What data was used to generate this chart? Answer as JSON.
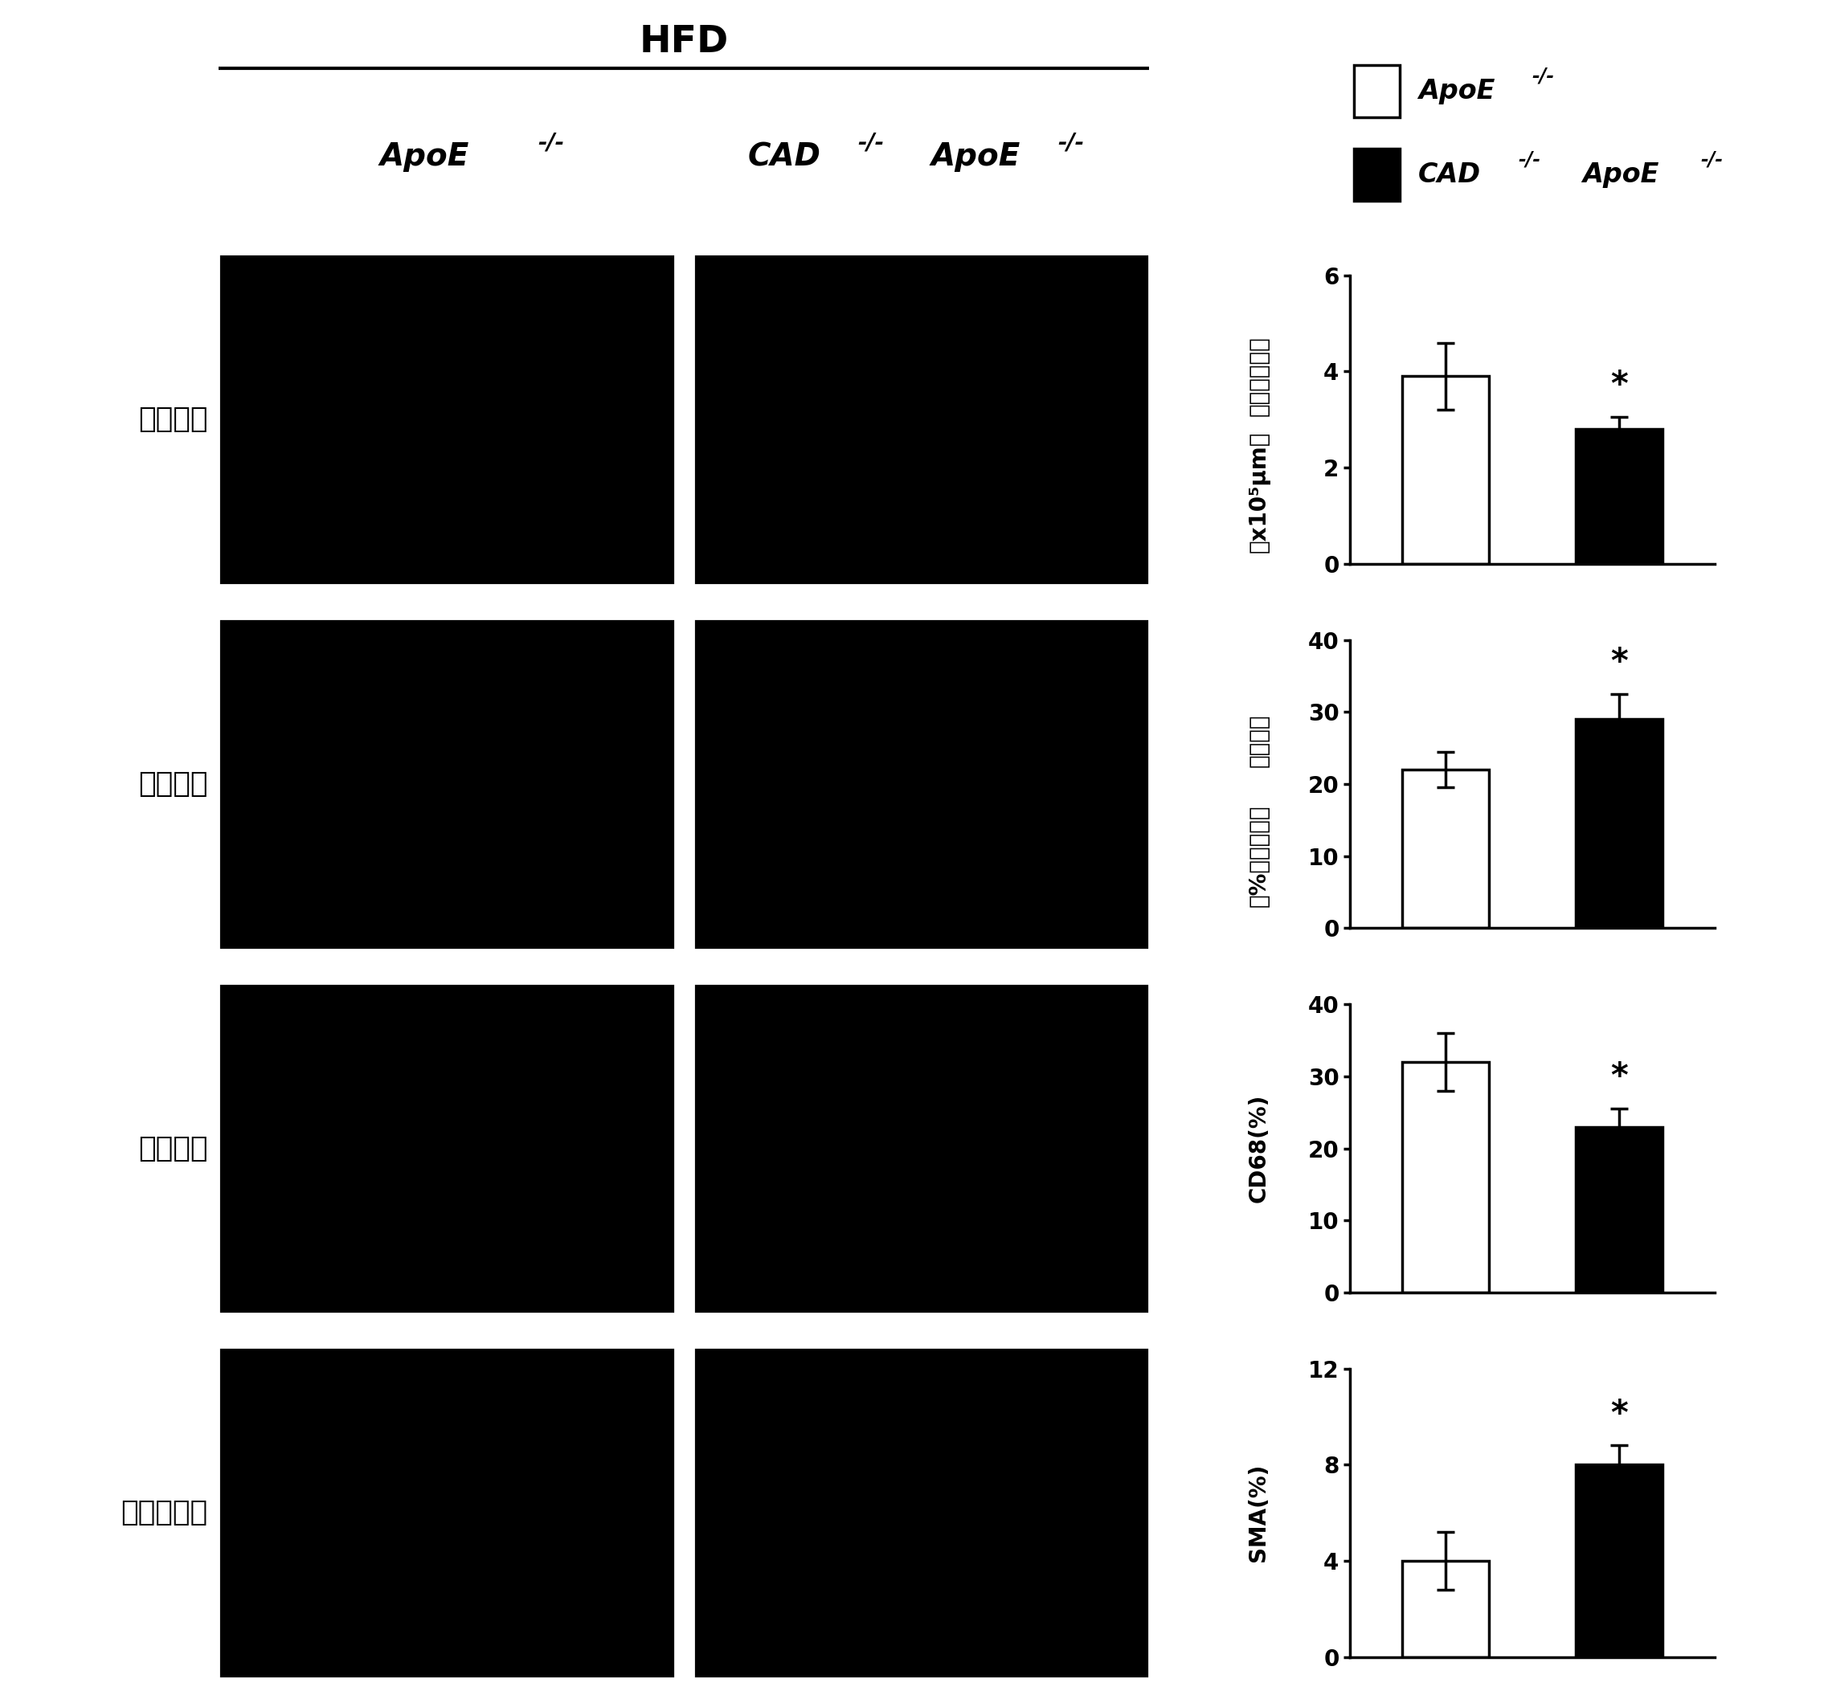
{
  "hfd_label": "HFD",
  "group1_label": "ApoE",
  "group2_label": "CAD",
  "group1_sup": "-/-",
  "group2_sup": "-/-",
  "row_labels": [
    "坏死中心",
    "胶原成分",
    "巨噬细胞",
    "平滑肌细胞"
  ],
  "charts": [
    {
      "ylabel_v1": "坏死中心面积",
      "ylabel_v2": "（x10⁵μm）",
      "ylim": [
        0,
        6
      ],
      "yticks": [
        0,
        2,
        4,
        6
      ],
      "bar1_val": 3.9,
      "bar1_err": 0.7,
      "bar2_val": 2.8,
      "bar2_err": 0.25
    },
    {
      "ylabel_v1": "胶原比例",
      "ylabel_v2": "（%斑块面积）",
      "ylim": [
        0,
        40
      ],
      "yticks": [
        0,
        10,
        20,
        30,
        40
      ],
      "bar1_val": 22,
      "bar1_err": 2.5,
      "bar2_val": 29,
      "bar2_err": 3.5
    },
    {
      "ylabel_v1": "CD68(%)",
      "ylabel_v2": "",
      "ylim": [
        0,
        40
      ],
      "yticks": [
        0,
        10,
        20,
        30,
        40
      ],
      "bar1_val": 32,
      "bar1_err": 4.0,
      "bar2_val": 23,
      "bar2_err": 2.5
    },
    {
      "ylabel_v1": "SMA(%)",
      "ylabel_v2": "",
      "ylim": [
        0,
        12
      ],
      "yticks": [
        0,
        4,
        8,
        12
      ],
      "bar1_val": 4.0,
      "bar1_err": 1.2,
      "bar2_val": 8.0,
      "bar2_err": 0.8
    }
  ],
  "image_color": "#000000",
  "bar_color_apoe": "#ffffff",
  "bar_color_cad": "#000000",
  "bar_edgecolor": "#000000",
  "background_color": "#ffffff",
  "img_gap_color": "#ffffff"
}
